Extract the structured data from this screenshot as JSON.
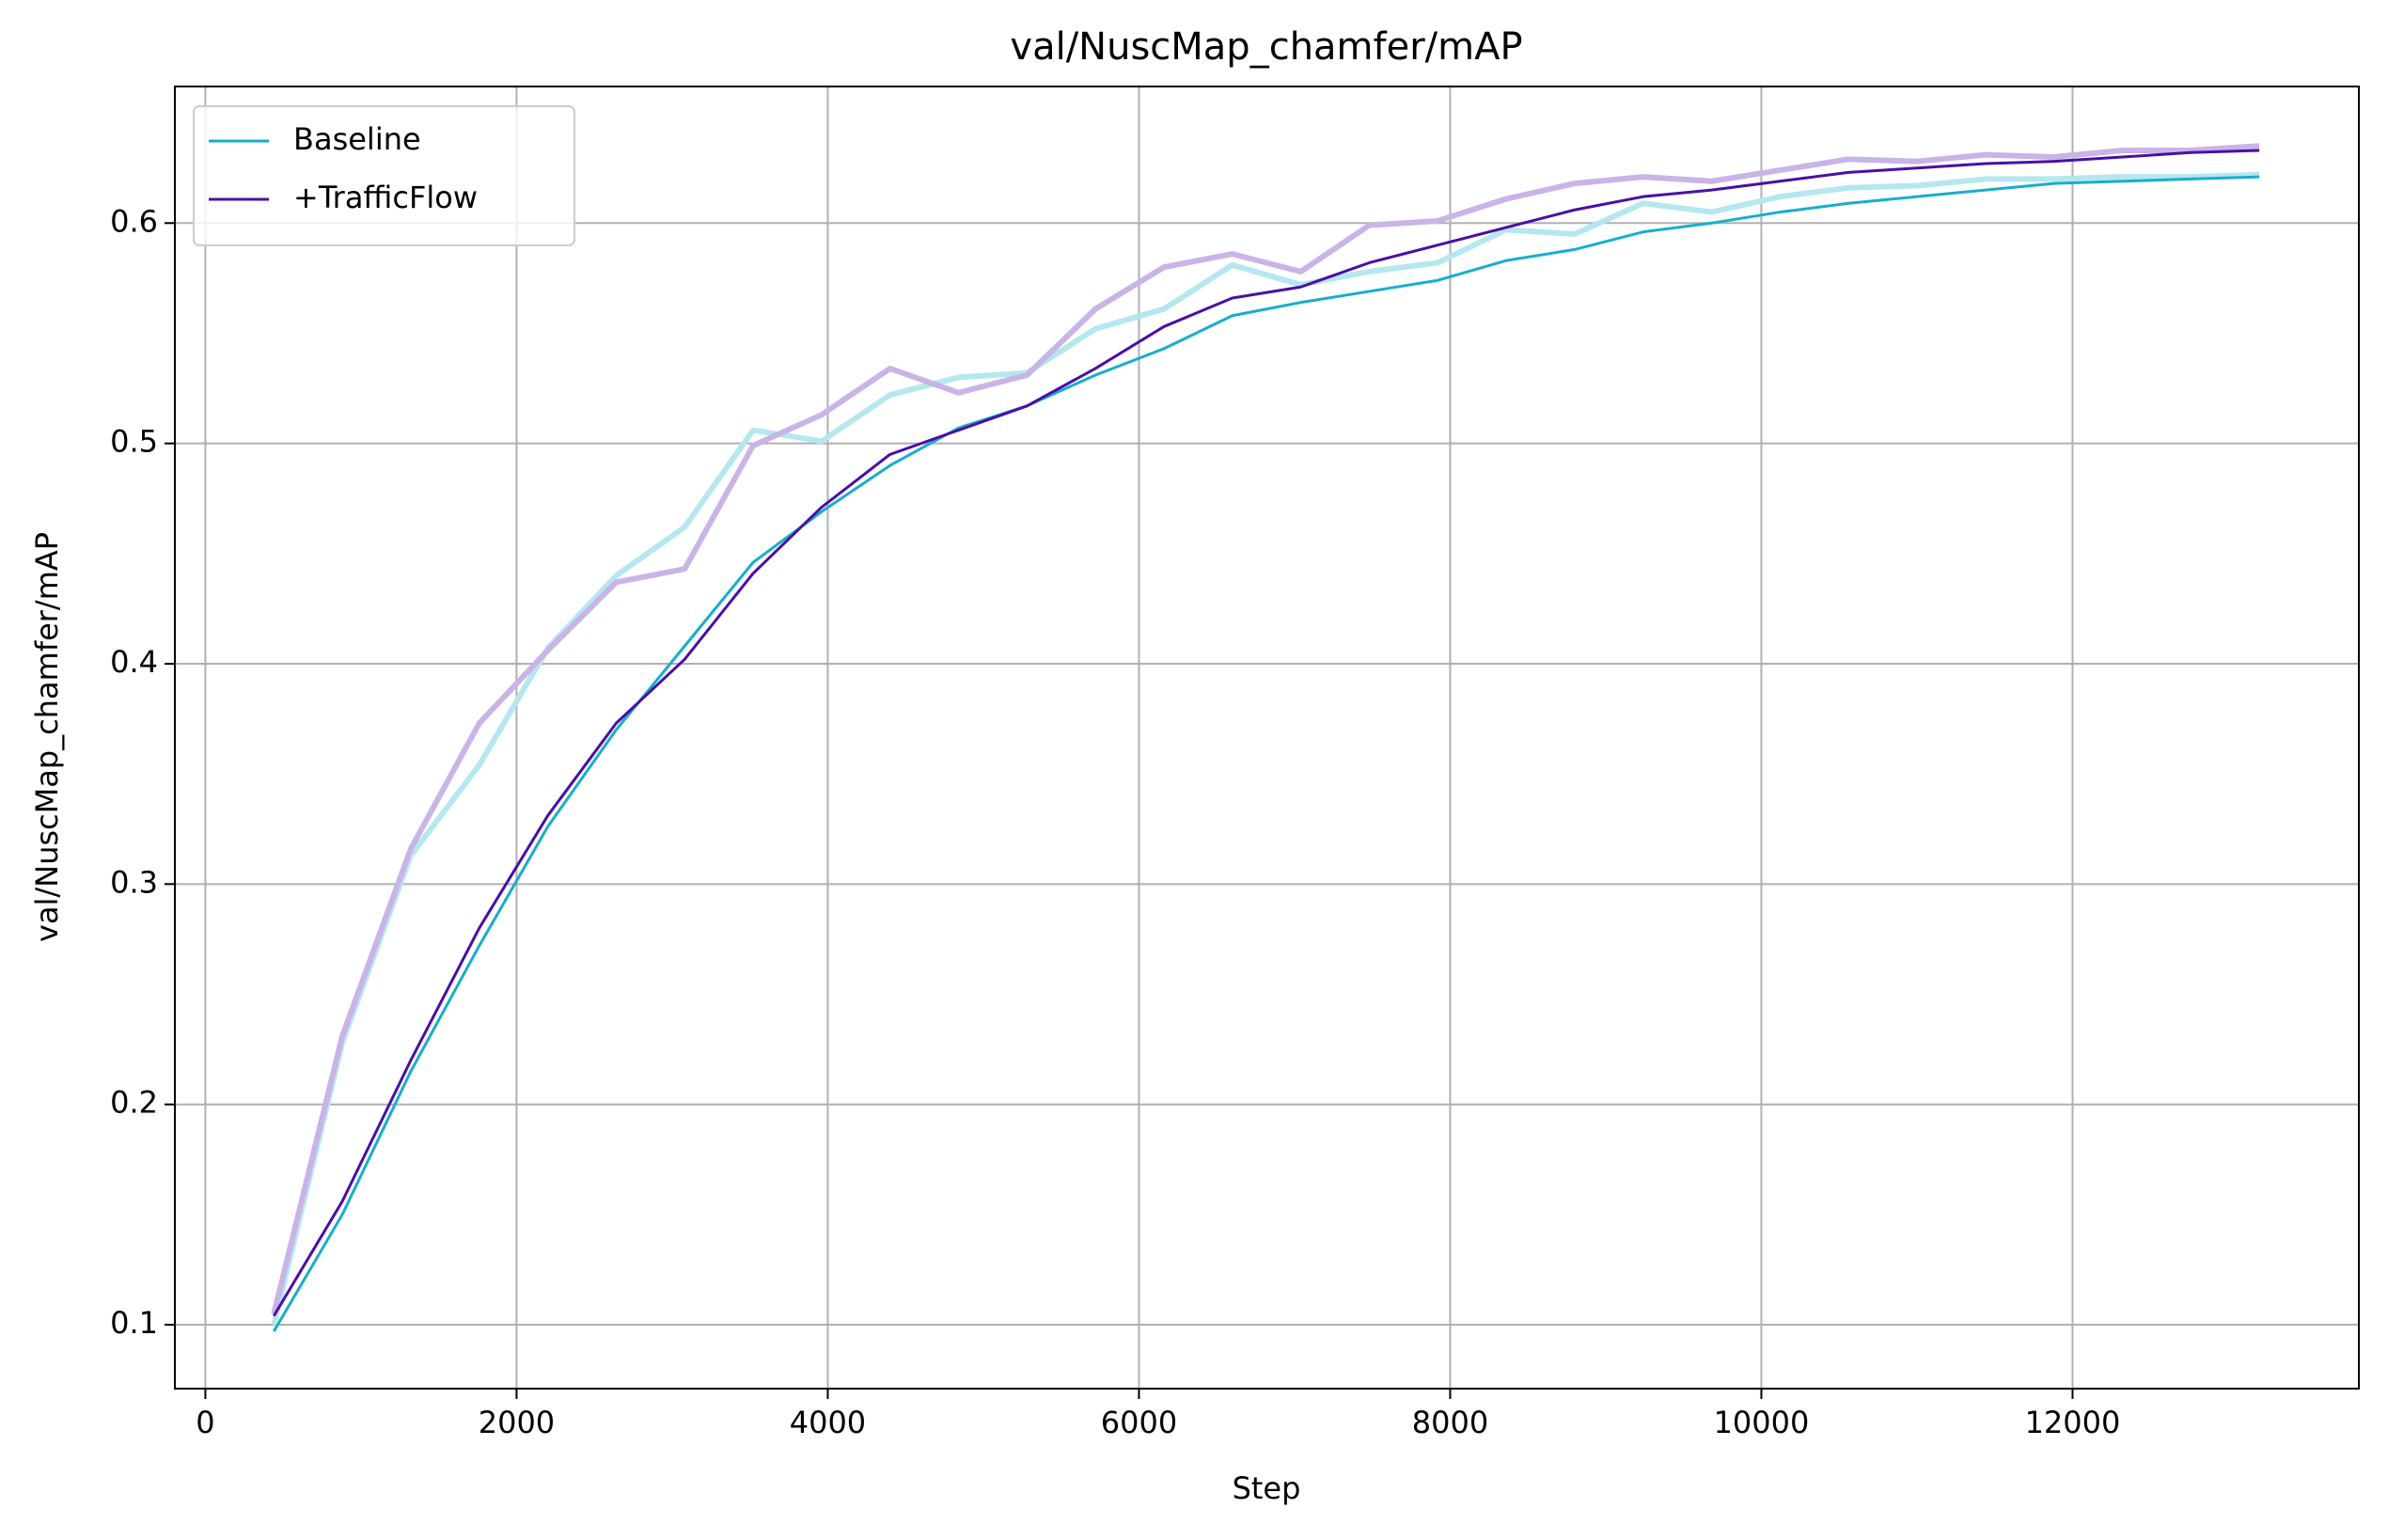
{
  "chart_data": {
    "type": "line",
    "title": "val/NuscMap_chamfer/mAP",
    "xlabel": "Step",
    "ylabel": "val/NuscMap_chamfer/mAP",
    "x": [
      440,
      880,
      1320,
      1760,
      2200,
      2640,
      3080,
      3520,
      3960,
      4400,
      4840,
      5280,
      5720,
      6160,
      6600,
      7040,
      7480,
      7920,
      8360,
      8800,
      9240,
      9680,
      10120,
      10560,
      11000,
      11440,
      11880,
      12320,
      12760,
      13200
    ],
    "series": [
      {
        "color": "#b5e7ef",
        "values": [
          0.1,
          0.228,
          0.313,
          0.354,
          0.407,
          0.44,
          0.462,
          0.506,
          0.501,
          0.522,
          0.53,
          0.532,
          0.552,
          0.561,
          0.581,
          0.572,
          0.578,
          0.582,
          0.597,
          0.595,
          0.609,
          0.605,
          0.612,
          0.616,
          0.617,
          0.62,
          0.62,
          0.621,
          0.621,
          0.622
        ]
      },
      {
        "color": "#c9b3e7",
        "values": [
          0.105,
          0.231,
          0.316,
          0.373,
          0.406,
          0.437,
          0.443,
          0.499,
          0.513,
          0.534,
          0.523,
          0.531,
          0.561,
          0.58,
          0.586,
          0.578,
          0.599,
          0.601,
          0.611,
          0.618,
          0.621,
          0.619,
          0.624,
          0.629,
          0.628,
          0.631,
          0.63,
          0.633,
          0.633,
          0.635
        ]
      },
      {
        "name": "Baseline",
        "color": "#17aecb",
        "values": [
          0.097,
          0.15,
          0.215,
          0.272,
          0.326,
          0.37,
          0.408,
          0.446,
          0.469,
          0.49,
          0.507,
          0.517,
          0.531,
          0.543,
          0.558,
          0.564,
          0.569,
          0.574,
          0.583,
          0.588,
          0.596,
          0.6,
          0.605,
          0.609,
          0.612,
          0.615,
          0.618,
          0.619,
          0.62,
          0.621
        ]
      },
      {
        "name": "+TrafficFlow",
        "color": "#4a0ea8",
        "values": [
          0.104,
          0.156,
          0.22,
          0.28,
          0.331,
          0.373,
          0.402,
          0.441,
          0.471,
          0.495,
          0.506,
          0.517,
          0.534,
          0.553,
          0.566,
          0.571,
          0.582,
          0.59,
          0.598,
          0.606,
          0.612,
          0.615,
          0.619,
          0.623,
          0.625,
          0.627,
          0.628,
          0.63,
          0.632,
          0.633
        ]
      }
    ],
    "xlim": [
      -196,
      13840
    ],
    "ylim": [
      0.071,
      0.662
    ],
    "xticks": [
      0,
      2000,
      4000,
      6000,
      8000,
      10000,
      12000
    ],
    "yticks": [
      0.1,
      0.2,
      0.3,
      0.4,
      0.5,
      0.6
    ],
    "grid": true,
    "legend": "upper-left"
  }
}
